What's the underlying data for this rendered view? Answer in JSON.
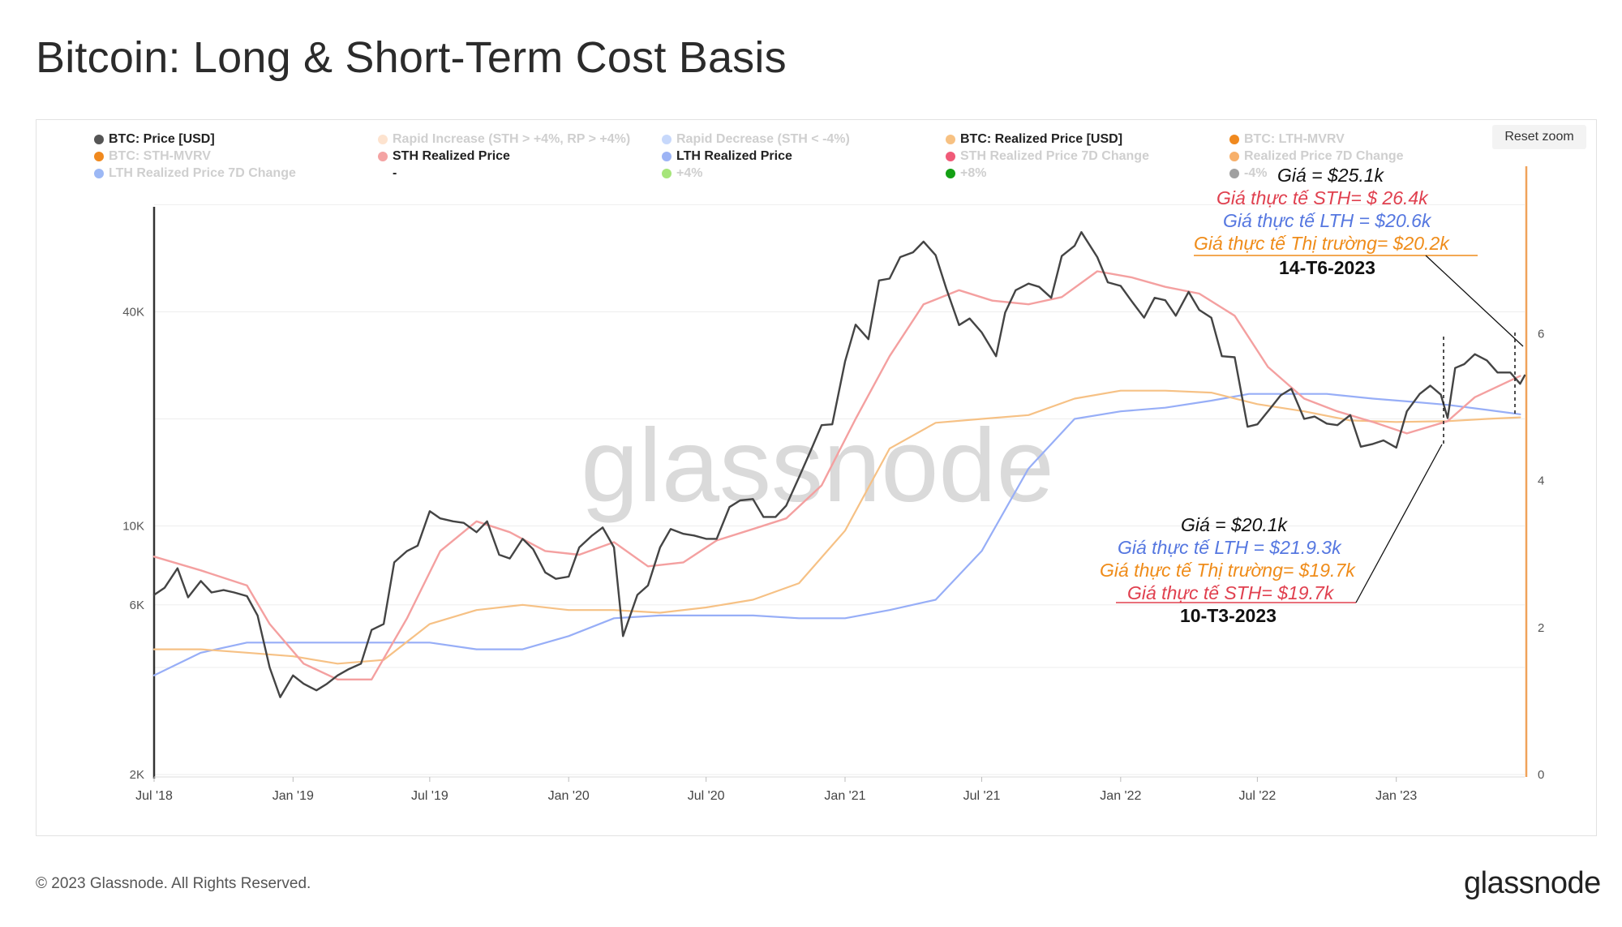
{
  "page": {
    "title": "Bitcoin: Long & Short-Term Cost Basis",
    "copyright": "© 2023 Glassnode. All Rights Reserved.",
    "logo_text": "glassnode",
    "watermark": "glassnode",
    "reset_zoom": "Reset zoom"
  },
  "legend": [
    {
      "label": "BTC: Price [USD]",
      "color": "#555555",
      "active": true
    },
    {
      "label": "Rapid Increase (STH > +4%, RP > +4%)",
      "color": "#fde3cf",
      "active": false
    },
    {
      "label": "Rapid Decrease (STH < -4%)",
      "color": "#c7d8fb",
      "active": false
    },
    {
      "label": "BTC: Realized Price [USD]",
      "color": "#f7c182",
      "active": true
    },
    {
      "label": "BTC: LTH-MVRV",
      "color": "#f0891e",
      "active": false
    },
    {
      "label": "BTC: STH-MVRV",
      "color": "#f0891e",
      "active": false
    },
    {
      "label": "STH Realized Price",
      "color": "#f4a3a3",
      "active": true
    },
    {
      "label": "LTH Realized Price",
      "color": "#9db4f5",
      "active": true
    },
    {
      "label": "STH Realized Price 7D Change",
      "color": "#f05a78",
      "active": false
    },
    {
      "label": "Realized Price 7D Change",
      "color": "#f7b06b",
      "active": false
    },
    {
      "label": "LTH Realized Price 7D Change",
      "color": "#9cb8f5",
      "active": false
    },
    {
      "label": "-",
      "color": "",
      "active": true
    },
    {
      "label": "+4%",
      "color": "#a6e57a",
      "active": false
    },
    {
      "label": "+8%",
      "color": "#14a014",
      "active": false
    },
    {
      "label": "-4%",
      "color": "#a0a0a0",
      "active": false
    }
  ],
  "annotations": {
    "top": {
      "price": "Giá = $25.1k",
      "sth": "Giá thực tế STH= $ 26.4k",
      "lth": "Giá thực tế LTH = $20.6k",
      "market": "Giá thực tế Thị trường= $20.2k",
      "date": "14-T6-2023"
    },
    "bottom": {
      "price": "Giá = $20.1k",
      "lth": "Giá thực tế LTH = $21.9.3k",
      "market": "Giá thực tế Thị trường= $19.7k",
      "sth": "Giá thực tế STH= $19.7k",
      "date": "10-T3-2023"
    }
  },
  "colors": {
    "price": "#444444",
    "sth": "#f4a0a0",
    "lth": "#97aef7",
    "realized": "#f6c185",
    "right_axis": "#f0a25a",
    "annot_sth": "#e0404f",
    "annot_lth": "#5577e0",
    "annot_market": "#ef8c1a"
  },
  "chart_data": {
    "type": "line",
    "title": "Bitcoin: Long & Short-Term Cost Basis",
    "x_axis": {
      "type": "date",
      "range": [
        "2018-07-01",
        "2023-06-20"
      ],
      "ticks": [
        "Jul '18",
        "Jan '19",
        "Jul '19",
        "Jan '20",
        "Jul '20",
        "Jan '21",
        "Jul '21",
        "Jan '22",
        "Jul '22",
        "Jan '23"
      ]
    },
    "y_axis": {
      "scale": "log",
      "range": [
        2000,
        90000
      ],
      "ticks": [
        "2K",
        "6K",
        "10K",
        "40K"
      ]
    },
    "y2_axis": {
      "scale": "linear",
      "range": [
        0,
        8
      ],
      "ticks": [
        "0",
        "2",
        "4",
        "6"
      ]
    },
    "grid": true,
    "legend_position": "top",
    "series": [
      {
        "name": "BTC: Price [USD]",
        "x": [
          "2018-07-01",
          "2018-07-15",
          "2018-08-01",
          "2018-08-15",
          "2018-09-01",
          "2018-09-15",
          "2018-10-01",
          "2018-10-15",
          "2018-11-01",
          "2018-11-15",
          "2018-12-01",
          "2018-12-15",
          "2019-01-01",
          "2019-01-15",
          "2019-02-01",
          "2019-02-15",
          "2019-03-01",
          "2019-03-15",
          "2019-04-01",
          "2019-04-15",
          "2019-05-01",
          "2019-05-15",
          "2019-06-01",
          "2019-06-15",
          "2019-07-01",
          "2019-07-15",
          "2019-08-01",
          "2019-08-15",
          "2019-09-01",
          "2019-09-15",
          "2019-10-01",
          "2019-10-15",
          "2019-11-01",
          "2019-11-15",
          "2019-12-01",
          "2019-12-15",
          "2020-01-01",
          "2020-01-15",
          "2020-02-01",
          "2020-02-15",
          "2020-03-01",
          "2020-03-13",
          "2020-04-01",
          "2020-04-15",
          "2020-05-01",
          "2020-05-15",
          "2020-06-01",
          "2020-06-15",
          "2020-07-01",
          "2020-07-15",
          "2020-08-01",
          "2020-08-15",
          "2020-09-01",
          "2020-09-15",
          "2020-10-01",
          "2020-10-15",
          "2020-11-01",
          "2020-11-15",
          "2020-12-01",
          "2020-12-15",
          "2021-01-01",
          "2021-01-15",
          "2021-02-01",
          "2021-02-15",
          "2021-03-01",
          "2021-03-15",
          "2021-04-01",
          "2021-04-15",
          "2021-05-01",
          "2021-05-15",
          "2021-06-01",
          "2021-06-15",
          "2021-07-01",
          "2021-07-20",
          "2021-08-01",
          "2021-08-15",
          "2021-09-01",
          "2021-09-15",
          "2021-10-01",
          "2021-10-15",
          "2021-11-01",
          "2021-11-10",
          "2021-12-01",
          "2021-12-15",
          "2022-01-01",
          "2022-01-15",
          "2022-02-01",
          "2022-02-15",
          "2022-03-01",
          "2022-03-15",
          "2022-04-01",
          "2022-04-15",
          "2022-05-01",
          "2022-05-15",
          "2022-06-01",
          "2022-06-18",
          "2022-07-01",
          "2022-07-15",
          "2022-08-01",
          "2022-08-15",
          "2022-09-01",
          "2022-09-15",
          "2022-10-01",
          "2022-10-15",
          "2022-11-01",
          "2022-11-15",
          "2022-12-01",
          "2022-12-15",
          "2023-01-01",
          "2023-01-15",
          "2023-02-01",
          "2023-02-15",
          "2023-03-01",
          "2023-03-10",
          "2023-03-20",
          "2023-04-01",
          "2023-04-15",
          "2023-05-01",
          "2023-05-15",
          "2023-06-01",
          "2023-06-14",
          "2023-06-20"
        ],
        "values": [
          6400,
          6700,
          7600,
          6300,
          7000,
          6500,
          6600,
          6500,
          6350,
          5600,
          4000,
          3300,
          3800,
          3600,
          3450,
          3600,
          3800,
          3950,
          4100,
          5100,
          5300,
          7900,
          8500,
          8800,
          11000,
          10500,
          10300,
          10200,
          9600,
          10300,
          8300,
          8100,
          9200,
          8600,
          7400,
          7100,
          7200,
          8700,
          9400,
          9900,
          8700,
          4900,
          6400,
          6800,
          8700,
          9800,
          9500,
          9400,
          9200,
          9200,
          11300,
          11800,
          11900,
          10600,
          10600,
          11400,
          13700,
          16000,
          19200,
          19300,
          29000,
          36800,
          33500,
          49000,
          49600,
          57000,
          58800,
          63000,
          57700,
          46500,
          36700,
          38300,
          35000,
          30000,
          39800,
          46000,
          48000,
          47000,
          43800,
          57400,
          61300,
          67000,
          57000,
          48400,
          47300,
          43000,
          38500,
          43800,
          43100,
          39000,
          45500,
          40500,
          38500,
          30000,
          29800,
          19000,
          19300,
          21000,
          23300,
          24300,
          20000,
          20300,
          19400,
          19200,
          20500,
          16700,
          17000,
          17400,
          16600,
          21000,
          23500,
          24800,
          23400,
          20100,
          27800,
          28500,
          30400,
          29200,
          27000,
          27000,
          25100,
          26500
        ]
      },
      {
        "name": "STH Realized Price",
        "x": [
          "2018-07-01",
          "2018-09-01",
          "2018-11-01",
          "2018-12-01",
          "2019-01-15",
          "2019-03-01",
          "2019-04-15",
          "2019-06-01",
          "2019-07-15",
          "2019-09-01",
          "2019-10-15",
          "2019-12-01",
          "2020-01-15",
          "2020-03-01",
          "2020-04-15",
          "2020-06-01",
          "2020-07-15",
          "2020-09-01",
          "2020-10-15",
          "2020-12-01",
          "2021-01-15",
          "2021-03-01",
          "2021-04-15",
          "2021-06-01",
          "2021-07-15",
          "2021-09-01",
          "2021-10-15",
          "2021-12-01",
          "2022-01-15",
          "2022-03-01",
          "2022-04-15",
          "2022-06-01",
          "2022-07-15",
          "2022-09-01",
          "2022-10-15",
          "2022-12-01",
          "2023-01-15",
          "2023-03-10",
          "2023-04-15",
          "2023-06-14"
        ],
        "values": [
          8200,
          7500,
          6800,
          5300,
          4100,
          3700,
          3700,
          5500,
          8500,
          10300,
          9600,
          8500,
          8300,
          9000,
          7700,
          7900,
          9100,
          9800,
          10500,
          13000,
          20000,
          30000,
          42000,
          46000,
          43000,
          42000,
          44000,
          52000,
          50000,
          47000,
          45000,
          39000,
          28000,
          22800,
          21000,
          19600,
          18200,
          19700,
          23000,
          26400
        ]
      },
      {
        "name": "LTH Realized Price",
        "x": [
          "2018-07-01",
          "2018-09-01",
          "2018-11-01",
          "2019-01-01",
          "2019-03-01",
          "2019-05-01",
          "2019-07-01",
          "2019-09-01",
          "2019-11-01",
          "2020-01-01",
          "2020-03-01",
          "2020-05-01",
          "2020-07-01",
          "2020-09-01",
          "2020-11-01",
          "2021-01-01",
          "2021-03-01",
          "2021-05-01",
          "2021-07-01",
          "2021-09-01",
          "2021-11-01",
          "2022-01-01",
          "2022-03-01",
          "2022-05-01",
          "2022-06-20",
          "2022-08-01",
          "2022-10-01",
          "2022-12-01",
          "2023-01-15",
          "2023-03-10",
          "2023-05-01",
          "2023-06-14"
        ],
        "values": [
          3800,
          4400,
          4700,
          4700,
          4700,
          4700,
          4700,
          4500,
          4500,
          4900,
          5500,
          5600,
          5600,
          5600,
          5500,
          5500,
          5800,
          6200,
          8500,
          14500,
          20000,
          21000,
          21500,
          22500,
          23500,
          23500,
          23500,
          22800,
          22400,
          21900,
          21200,
          20600
        ]
      },
      {
        "name": "BTC: Realized Price [USD]",
        "x": [
          "2018-07-01",
          "2018-09-01",
          "2018-11-01",
          "2019-01-01",
          "2019-03-01",
          "2019-05-01",
          "2019-07-01",
          "2019-09-01",
          "2019-11-01",
          "2020-01-01",
          "2020-03-01",
          "2020-05-01",
          "2020-07-01",
          "2020-09-01",
          "2020-11-01",
          "2021-01-01",
          "2021-03-01",
          "2021-05-01",
          "2021-07-01",
          "2021-09-01",
          "2021-11-01",
          "2022-01-01",
          "2022-03-01",
          "2022-05-01",
          "2022-07-01",
          "2022-09-01",
          "2022-11-01",
          "2023-01-01",
          "2023-03-10",
          "2023-05-01",
          "2023-06-14"
        ],
        "values": [
          4500,
          4500,
          4400,
          4300,
          4100,
          4200,
          5300,
          5800,
          6000,
          5800,
          5800,
          5700,
          5900,
          6200,
          6900,
          9700,
          16500,
          19500,
          20000,
          20500,
          22800,
          24000,
          24000,
          23700,
          22000,
          21000,
          19800,
          19600,
          19700,
          20000,
          20200
        ]
      }
    ]
  }
}
